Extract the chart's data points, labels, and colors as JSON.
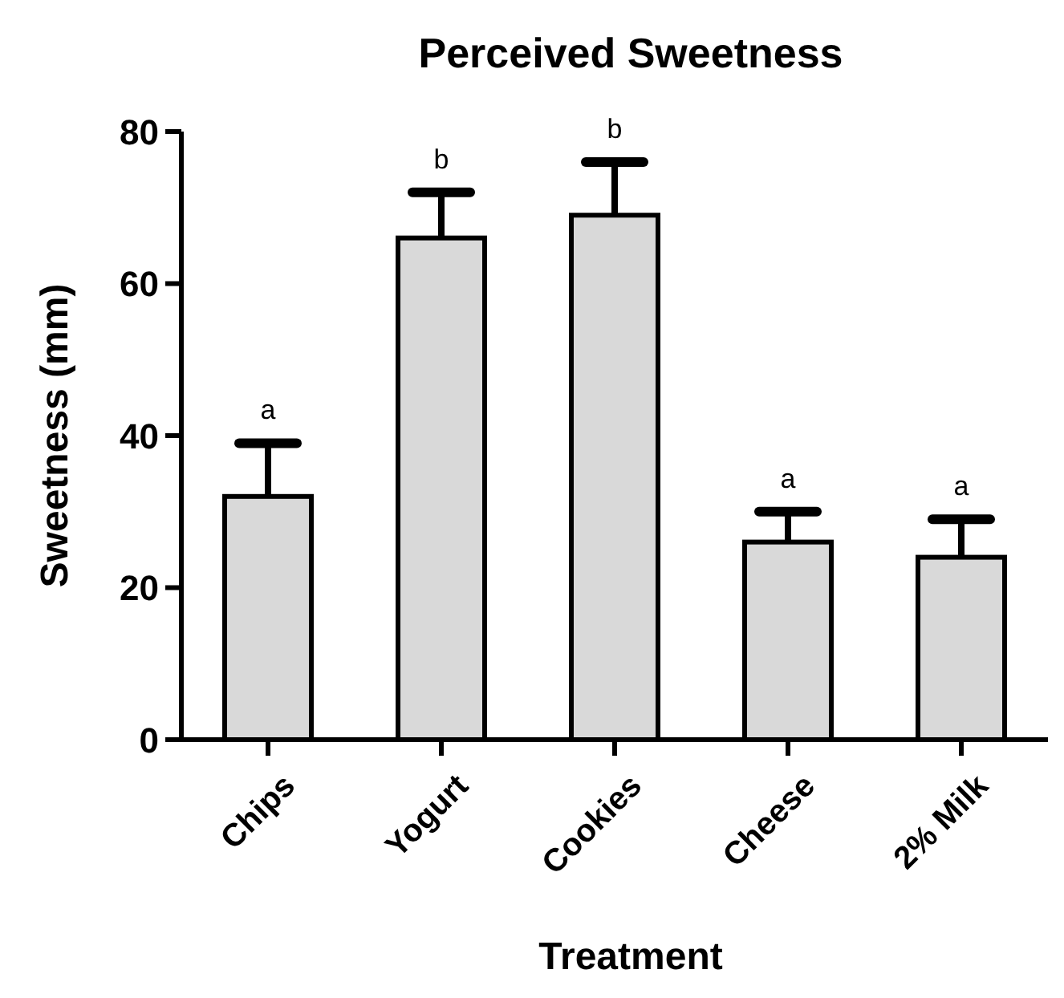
{
  "chart_data": {
    "type": "bar",
    "title": "Perceived Sweetness",
    "xlabel": "Treatment",
    "ylabel": "Sweetness (mm)",
    "categories": [
      "Chips",
      "Yogurt",
      "Cookies",
      "Cheese",
      "2% Milk"
    ],
    "values": [
      32,
      66,
      69,
      26,
      24
    ],
    "errors": [
      [
        32,
        39
      ],
      [
        66,
        72
      ],
      [
        69,
        76
      ],
      [
        26,
        30
      ],
      [
        24,
        29
      ]
    ],
    "color": "#d9d9d9",
    "ylim": [
      0,
      80
    ],
    "yticks": [
      0,
      20,
      40,
      60,
      80
    ],
    "grid": false,
    "annotations": [
      "a",
      "b",
      "b",
      "a",
      "a"
    ]
  }
}
